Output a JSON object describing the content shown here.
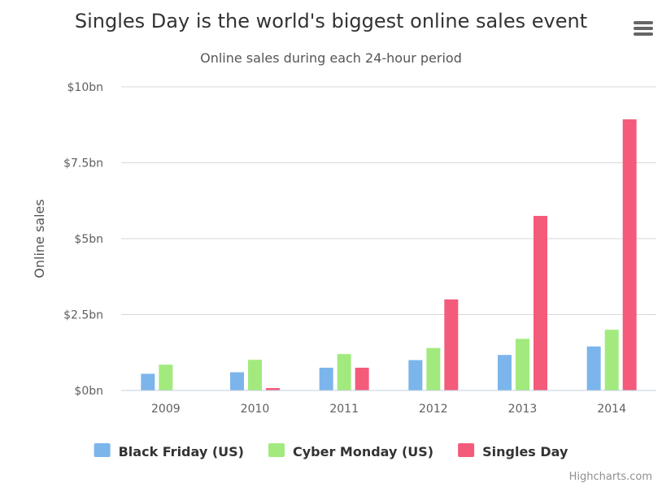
{
  "chart_data": {
    "type": "bar",
    "title": "Singles Day is the world's biggest online sales event",
    "subtitle": "Online sales during each 24-hour period",
    "xlabel": "",
    "ylabel": "Online sales",
    "categories": [
      "2009",
      "2010",
      "2011",
      "2012",
      "2013",
      "2014"
    ],
    "ylim": [
      0,
      10
    ],
    "yticks": [
      {
        "value": 0,
        "label": "$0bn"
      },
      {
        "value": 2.5,
        "label": "$2.5bn"
      },
      {
        "value": 5,
        "label": "$5bn"
      },
      {
        "value": 7.5,
        "label": "$7.5bn"
      },
      {
        "value": 10,
        "label": "$10bn"
      }
    ],
    "grid": true,
    "legend": "bottom",
    "series": [
      {
        "name": "Black Friday (US)",
        "color": "#7cb5ec",
        "values": [
          0.55,
          0.6,
          0.75,
          1.0,
          1.17,
          1.45
        ]
      },
      {
        "name": "Cyber Monday (US)",
        "color": "#a2ea7e",
        "values": [
          0.85,
          1.01,
          1.2,
          1.4,
          1.7,
          2.0
        ]
      },
      {
        "name": "Singles Day",
        "color": "#f45b7a",
        "values": [
          0,
          0.08,
          0.75,
          3.0,
          5.75,
          8.93
        ]
      }
    ]
  },
  "credits": "Highcharts.com",
  "menu_icon": "hamburger-menu-icon"
}
